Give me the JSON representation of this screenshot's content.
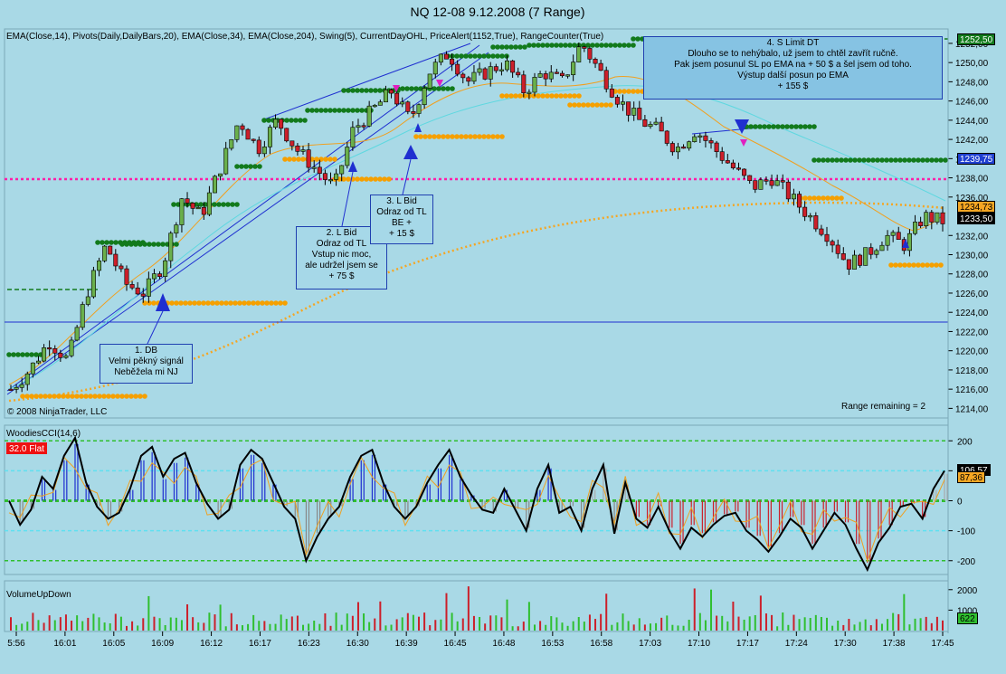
{
  "title": "NQ 12-08  9.12.2008 (7 Range)",
  "indicators_line": "EMA(Close,14), Pivots(Daily,DailyBars,20), EMA(Close,34), EMA(Close,204), Swing(5), CurrentDayOHL, PriceAlert(1152,True), RangeCounter(True)",
  "copyright": "© 2008 NinjaTrader, LLC",
  "range_remaining": "Range remaining = 2",
  "colors": {
    "background": "#a9d9e6",
    "candle_up": "#6ab04c",
    "candle_down": "#cc1f2a",
    "ema14": "#f0a020",
    "ema34": "#5fd8e0",
    "ema204": "#f5a623",
    "swing_high": "#127a1c",
    "swing_low": "#f5a000",
    "price_alert": "#ff1fa8",
    "trendline": "#1f2fd0"
  },
  "annotations": [
    {
      "id": "a1",
      "lines": [
        "1. DB",
        "Velmi pěkný signál",
        "Neběžela mi NJ"
      ]
    },
    {
      "id": "a2",
      "lines": [
        "2. L Bid",
        "Odraz od TL",
        "Vstup nic moc,",
        "ale udržel jsem se",
        "+ 75 $"
      ]
    },
    {
      "id": "a3",
      "lines": [
        "3. L Bid",
        "Odraz od TL",
        "BE +",
        "+ 15 $"
      ]
    },
    {
      "id": "a4",
      "lines": [
        "4. S Limit   DT",
        "Dlouho se to nehýbalo, už jsem to chtěl zavřít ručně.",
        "Pak jsem posunul SL po EMA na + 50 $ a šel jsem od toho.",
        "Výstup další posun po EMA",
        "+ 155 $"
      ]
    }
  ],
  "price_badges": [
    {
      "value": "1252,50",
      "bg": "#127a1c",
      "fg": "#ffffff"
    },
    {
      "value": "1239,75",
      "bg": "#1f3fd0",
      "fg": "#ffffff"
    },
    {
      "value": "1234,73",
      "bg": "#f5a623",
      "fg": "#000000"
    },
    {
      "value": "1233,50",
      "bg": "#000000",
      "fg": "#ffffff"
    }
  ],
  "price_axis_labels": [
    "1252,00",
    "1250,00",
    "1248,00",
    "1246,00",
    "1244,00",
    "1242,00",
    "1240,00",
    "1238,00",
    "1236,00",
    "1232,00",
    "1230,00",
    "1228,00",
    "1226,00",
    "1224,00",
    "1222,00",
    "1220,00",
    "1218,00",
    "1216,00",
    "1214,00"
  ],
  "cci": {
    "label": "WoodiesCCI(14,6)",
    "status_badge": "32.0 Flat",
    "axis_labels": [
      "200",
      "100",
      "0",
      "-100",
      "-200"
    ],
    "badges": [
      {
        "value": "106,57",
        "bg": "#000000",
        "fg": "#ffffff"
      },
      {
        "value": "87,36",
        "bg": "#f5a623",
        "fg": "#000000"
      }
    ]
  },
  "volume": {
    "label": "VolumeUpDown",
    "axis_labels": [
      "2000",
      "1000"
    ],
    "badge": {
      "value": "622",
      "bg": "#2fbf2f",
      "fg": "#000000"
    }
  },
  "chart_data": {
    "type": "candlestick",
    "title": "NQ 12-08  9.12.2008 (7 Range)",
    "time_labels": [
      "5:56",
      "16:01",
      "16:05",
      "16:09",
      "16:12",
      "16:17",
      "16:23",
      "16:30",
      "16:39",
      "16:45",
      "16:48",
      "16:53",
      "16:58",
      "17:03",
      "17:10",
      "17:17",
      "17:24",
      "17:30",
      "17:38",
      "17:45"
    ],
    "ylim": [
      1213,
      1253.5
    ],
    "close_path": [
      1216,
      1218,
      1221,
      1219,
      1226,
      1231,
      1227,
      1226,
      1229,
      1236,
      1234,
      1239,
      1244,
      1241,
      1244,
      1241,
      1239,
      1237,
      1243,
      1245,
      1247,
      1244,
      1249,
      1251,
      1248,
      1249,
      1250,
      1247,
      1249,
      1248,
      1252,
      1249,
      1246,
      1244,
      1243,
      1241,
      1243,
      1241,
      1239,
      1237,
      1238,
      1236,
      1234,
      1232,
      1229,
      1230,
      1232,
      1231,
      1234,
      1233.5
    ],
    "horizontal_levels": {
      "current_day_open": 1222.6,
      "price_alert": 1237.7,
      "ema204_last": 1234.73,
      "close_last": 1233.5
    },
    "cci_range": [
      -240,
      240
    ],
    "cci_levels": [
      200,
      100,
      0,
      -100,
      -200
    ],
    "volume_ylim": [
      0,
      2300
    ]
  }
}
